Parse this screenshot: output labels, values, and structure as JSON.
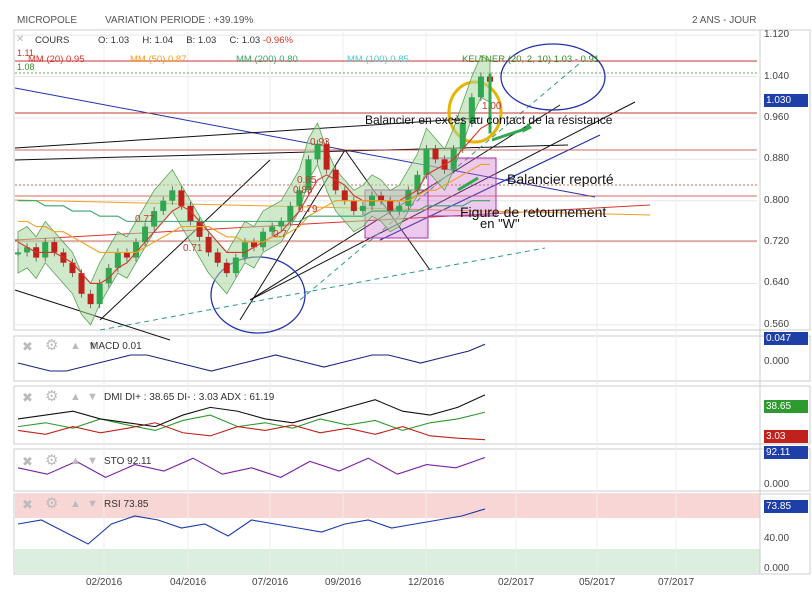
{
  "header": {
    "ticker": "MICROPOLE",
    "variation": "VARIATION PERIODE : +39.19%",
    "period": "2 ANS - JOUR"
  },
  "price_panel": {
    "cours_label": "COURS",
    "ohlc": {
      "o_label": "O:",
      "o": "1.03",
      "h_label": "H:",
      "h": "1.04",
      "b_label": "B:",
      "b": "1.03",
      "c_label": "C:",
      "c": "1.03",
      "pct": "-0.96%"
    },
    "top_values": [
      "1.11",
      "1.08"
    ],
    "ma_legend": [
      {
        "label": "MM (20)",
        "value": "0.95",
        "color": "#d9342b"
      },
      {
        "label": "MM (50)",
        "value": "0.87",
        "color": "#f0a020"
      },
      {
        "label": "MM (200)",
        "value": "0.80",
        "color": "#39a56b"
      },
      {
        "label": "MM (100)",
        "value": "0.85",
        "color": "#4fc6d6"
      },
      {
        "label": "KELTNER (20, 2, 10)",
        "value": "1.03 - 0.91",
        "color": "#3a8a2a"
      }
    ],
    "last_price_tag": "1.030",
    "level_labels": [
      "0.93",
      "0.85",
      "0.83",
      "0.79",
      "0.77",
      "0.71",
      "0.7",
      "1.00"
    ],
    "annotations": {
      "balancier_exces": "Balancier en excès au contact de la résistance",
      "balancier_reporte": "Balancier reporté",
      "figure_ret": "Figure de retournement",
      "en_w": "en \"W\""
    }
  },
  "chart_data": [
    {
      "type": "line",
      "title": "MICROPOLE",
      "xlabel": "",
      "ylabel": "",
      "x_ticks": [
        "02/2016",
        "04/2016",
        "07/2016",
        "09/2016",
        "12/2016",
        "02/2017",
        "05/2017",
        "07/2017"
      ],
      "y_ticks": [
        1.12,
        1.04,
        0.96,
        0.88,
        0.8,
        0.72,
        0.64,
        0.56
      ],
      "ylim": [
        0.55,
        1.13
      ],
      "grid": true,
      "series": [
        {
          "name": "COURS",
          "values": [
            0.7,
            0.71,
            0.69,
            0.72,
            0.7,
            0.68,
            0.66,
            0.62,
            0.6,
            0.64,
            0.67,
            0.7,
            0.69,
            0.72,
            0.75,
            0.78,
            0.8,
            0.82,
            0.79,
            0.76,
            0.73,
            0.7,
            0.68,
            0.66,
            0.69,
            0.72,
            0.71,
            0.74,
            0.75,
            0.76,
            0.79,
            0.82,
            0.88,
            0.91,
            0.86,
            0.82,
            0.8,
            0.78,
            0.79,
            0.81,
            0.8,
            0.78,
            0.79,
            0.82,
            0.85,
            0.9,
            0.88,
            0.86,
            0.9,
            0.95,
            1.0,
            1.04,
            1.03
          ]
        },
        {
          "name": "MM (20)",
          "values": [
            0.72,
            0.71,
            0.7,
            0.7,
            0.7,
            0.69,
            0.68,
            0.66,
            0.64,
            0.64,
            0.65,
            0.67,
            0.68,
            0.7,
            0.72,
            0.74,
            0.76,
            0.78,
            0.79,
            0.78,
            0.76,
            0.74,
            0.72,
            0.7,
            0.7,
            0.7,
            0.71,
            0.72,
            0.73,
            0.74,
            0.76,
            0.78,
            0.81,
            0.84,
            0.85,
            0.84,
            0.83,
            0.81,
            0.8,
            0.8,
            0.8,
            0.8,
            0.8,
            0.81,
            0.82,
            0.85,
            0.86,
            0.87,
            0.88,
            0.9,
            0.92,
            0.94,
            0.95
          ]
        },
        {
          "name": "MM (50)",
          "values": [
            0.76,
            0.76,
            0.75,
            0.75,
            0.74,
            0.74,
            0.73,
            0.72,
            0.71,
            0.7,
            0.7,
            0.7,
            0.7,
            0.7,
            0.71,
            0.72,
            0.73,
            0.74,
            0.75,
            0.75,
            0.75,
            0.75,
            0.74,
            0.73,
            0.73,
            0.72,
            0.72,
            0.72,
            0.73,
            0.73,
            0.74,
            0.75,
            0.77,
            0.78,
            0.79,
            0.8,
            0.8,
            0.8,
            0.8,
            0.8,
            0.8,
            0.8,
            0.8,
            0.8,
            0.81,
            0.82,
            0.82,
            0.83,
            0.84,
            0.85,
            0.86,
            0.87,
            0.87
          ]
        },
        {
          "name": "MM (200)",
          "values": [
            0.8,
            0.8,
            0.8,
            0.79,
            0.79,
            0.79,
            0.78,
            0.78,
            0.78,
            0.77,
            0.77,
            0.77,
            0.76,
            0.76,
            0.76,
            0.76,
            0.76,
            0.76,
            0.76,
            0.76,
            0.76,
            0.76,
            0.76,
            0.76,
            0.76,
            0.76,
            0.76,
            0.76,
            0.76,
            0.76,
            0.76,
            0.76,
            0.77,
            0.77,
            0.77,
            0.77,
            0.77,
            0.77,
            0.77,
            0.78,
            0.78,
            0.78,
            0.78,
            0.78,
            0.78,
            0.79,
            0.79,
            0.79,
            0.79,
            0.79,
            0.8,
            0.8,
            0.8
          ]
        }
      ]
    },
    {
      "type": "line",
      "title": "MACD",
      "value": "0.01",
      "tag": "0.047",
      "y_ticks": [
        "0.000"
      ],
      "series": [
        {
          "name": "MACD",
          "values": [
            0.0,
            -0.01,
            -0.02,
            -0.02,
            -0.01,
            0.0,
            0.01,
            0.02,
            0.02,
            0.01,
            0.0,
            -0.01,
            -0.02,
            -0.01,
            0.0,
            0.01,
            0.02,
            0.01,
            0.0,
            -0.01,
            0.0,
            0.01,
            0.02,
            0.02,
            0.01,
            0.0,
            0.01,
            0.02,
            0.03,
            0.047
          ]
        }
      ]
    },
    {
      "type": "line",
      "title": "DMI",
      "value": "DI+ : 38.65 DI- : 3.03 ADX : 61.19",
      "tags": [
        "38.65",
        "3.03"
      ],
      "series": [
        {
          "name": "DI+",
          "values": [
            20,
            25,
            18,
            30,
            22,
            15,
            28,
            35,
            20,
            25,
            18,
            30,
            22,
            28,
            15,
            25,
            30,
            38.65
          ]
        },
        {
          "name": "DI-",
          "values": [
            15,
            10,
            20,
            12,
            18,
            25,
            12,
            8,
            20,
            15,
            22,
            12,
            18,
            10,
            20,
            8,
            5,
            3.03
          ]
        },
        {
          "name": "ADX",
          "values": [
            30,
            35,
            40,
            30,
            25,
            20,
            35,
            45,
            40,
            30,
            25,
            35,
            45,
            55,
            40,
            35,
            45,
            61.19
          ]
        }
      ]
    },
    {
      "type": "line",
      "title": "STO",
      "value": "92.11",
      "tags": [
        "92.11",
        "0.000"
      ],
      "series": [
        {
          "name": "STO",
          "values": [
            60,
            40,
            80,
            30,
            70,
            50,
            90,
            40,
            60,
            30,
            80,
            50,
            90,
            40,
            70,
            60,
            92.11
          ]
        }
      ]
    },
    {
      "type": "line",
      "title": "RSI",
      "value": "73.85",
      "tags": [
        "73.85",
        "40.00",
        "0.000"
      ],
      "series": [
        {
          "name": "RSI",
          "values": [
            55,
            60,
            45,
            30,
            55,
            65,
            60,
            50,
            55,
            40,
            60,
            55,
            50,
            45,
            55,
            60,
            50,
            55,
            60,
            65,
            73.85
          ]
        }
      ]
    }
  ],
  "y_labels": [
    "1.120",
    "1.040",
    "0.960",
    "0.880",
    "0.800",
    "0.720",
    "0.640",
    "0.560"
  ],
  "x_labels": [
    "02/2016",
    "04/2016",
    "07/2016",
    "09/2016",
    "12/2016",
    "02/2017",
    "05/2017",
    "07/2017"
  ],
  "indicator_tags": {
    "macd": "0.047",
    "macd_zero": "0.000",
    "dmi_pos": "38.65",
    "dmi_neg": "3.03",
    "sto": "92.11",
    "sto_zero": "0.000",
    "rsi": "73.85",
    "rsi_40": "40.00",
    "rsi_zero": "0.000"
  },
  "colors": {
    "green": "#3a8a2a",
    "red": "#c0392b",
    "blue": "#2233aa",
    "gold": "#e8b400",
    "pink": "#cc66cc"
  }
}
